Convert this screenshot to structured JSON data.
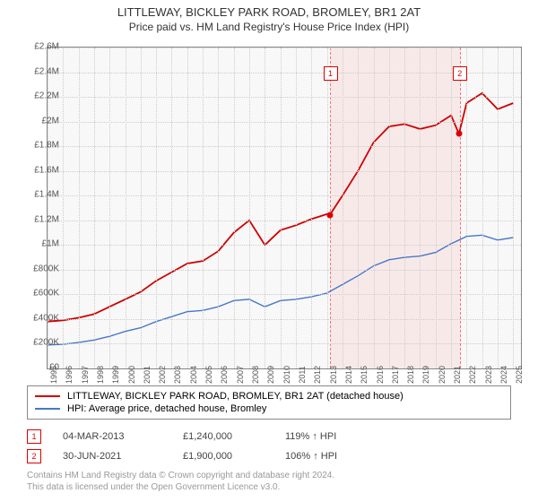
{
  "title": "LITTLEWAY, BICKLEY PARK ROAD, BROMLEY, BR1 2AT",
  "subtitle": "Price paid vs. HM Land Registry's House Price Index (HPI)",
  "chart": {
    "type": "line",
    "background_color": "#f8f8f8",
    "grid_color": "#cccccc",
    "border_color": "#888888",
    "x": {
      "min": 1995,
      "max": 2025.5,
      "ticks": [
        1995,
        1996,
        1997,
        1998,
        1999,
        2000,
        2001,
        2002,
        2003,
        2004,
        2005,
        2006,
        2007,
        2008,
        2009,
        2010,
        2011,
        2012,
        2013,
        2014,
        2015,
        2016,
        2017,
        2018,
        2019,
        2020,
        2021,
        2022,
        2023,
        2024,
        2025
      ]
    },
    "y": {
      "min": 0,
      "max": 2600000,
      "tick_step": 200000,
      "labels": [
        "£0",
        "£200K",
        "£400K",
        "£600K",
        "£800K",
        "£1M",
        "£1.2M",
        "£1.4M",
        "£1.6M",
        "£1.8M",
        "£2M",
        "£2.2M",
        "£2.4M",
        "£2.6M"
      ]
    },
    "shade": {
      "from": 2013.17,
      "to": 2021.5,
      "color": "rgba(255,0,0,0.06)",
      "border": "rgba(255,0,0,0.5)"
    },
    "series": [
      {
        "name": "price_paid",
        "label": "LITTLEWAY, BICKLEY PARK ROAD, BROMLEY, BR1 2AT (detached house)",
        "color": "#d00000",
        "line_width": 1.8,
        "points": [
          [
            1995,
            380000
          ],
          [
            1996,
            390000
          ],
          [
            1997,
            410000
          ],
          [
            1998,
            440000
          ],
          [
            1999,
            500000
          ],
          [
            2000,
            560000
          ],
          [
            2001,
            620000
          ],
          [
            2002,
            710000
          ],
          [
            2003,
            780000
          ],
          [
            2004,
            850000
          ],
          [
            2005,
            870000
          ],
          [
            2006,
            950000
          ],
          [
            2007,
            1100000
          ],
          [
            2008,
            1200000
          ],
          [
            2009,
            1000000
          ],
          [
            2010,
            1120000
          ],
          [
            2011,
            1160000
          ],
          [
            2012,
            1210000
          ],
          [
            2013,
            1250000
          ],
          [
            2013.17,
            1240000
          ],
          [
            2014,
            1400000
          ],
          [
            2015,
            1600000
          ],
          [
            2016,
            1830000
          ],
          [
            2017,
            1960000
          ],
          [
            2018,
            1980000
          ],
          [
            2019,
            1940000
          ],
          [
            2020,
            1970000
          ],
          [
            2021,
            2050000
          ],
          [
            2021.5,
            1900000
          ],
          [
            2022,
            2150000
          ],
          [
            2023,
            2230000
          ],
          [
            2024,
            2100000
          ],
          [
            2025,
            2150000
          ]
        ]
      },
      {
        "name": "hpi",
        "label": "HPI: Average price, detached house, Bromley",
        "color": "#4678c8",
        "line_width": 1.4,
        "points": [
          [
            1995,
            190000
          ],
          [
            1996,
            195000
          ],
          [
            1997,
            210000
          ],
          [
            1998,
            230000
          ],
          [
            1999,
            260000
          ],
          [
            2000,
            300000
          ],
          [
            2001,
            330000
          ],
          [
            2002,
            380000
          ],
          [
            2003,
            420000
          ],
          [
            2004,
            460000
          ],
          [
            2005,
            470000
          ],
          [
            2006,
            500000
          ],
          [
            2007,
            550000
          ],
          [
            2008,
            560000
          ],
          [
            2009,
            500000
          ],
          [
            2010,
            550000
          ],
          [
            2011,
            560000
          ],
          [
            2012,
            580000
          ],
          [
            2013,
            610000
          ],
          [
            2014,
            680000
          ],
          [
            2015,
            750000
          ],
          [
            2016,
            830000
          ],
          [
            2017,
            880000
          ],
          [
            2018,
            900000
          ],
          [
            2019,
            910000
          ],
          [
            2020,
            940000
          ],
          [
            2021,
            1010000
          ],
          [
            2022,
            1070000
          ],
          [
            2023,
            1080000
          ],
          [
            2024,
            1040000
          ],
          [
            2025,
            1060000
          ]
        ]
      }
    ],
    "markers": [
      {
        "n": "1",
        "x": 2013.17,
        "y": 1240000,
        "box_y": 2400000
      },
      {
        "n": "2",
        "x": 2021.5,
        "y": 1900000,
        "box_y": 2400000
      }
    ]
  },
  "transactions": [
    {
      "n": "1",
      "date": "04-MAR-2013",
      "price": "£1,240,000",
      "pct": "119% ↑ HPI"
    },
    {
      "n": "2",
      "date": "30-JUN-2021",
      "price": "£1,900,000",
      "pct": "106% ↑ HPI"
    }
  ],
  "licence_line1": "Contains HM Land Registry data © Crown copyright and database right 2024.",
  "licence_line2": "This data is licensed under the Open Government Licence v3.0."
}
